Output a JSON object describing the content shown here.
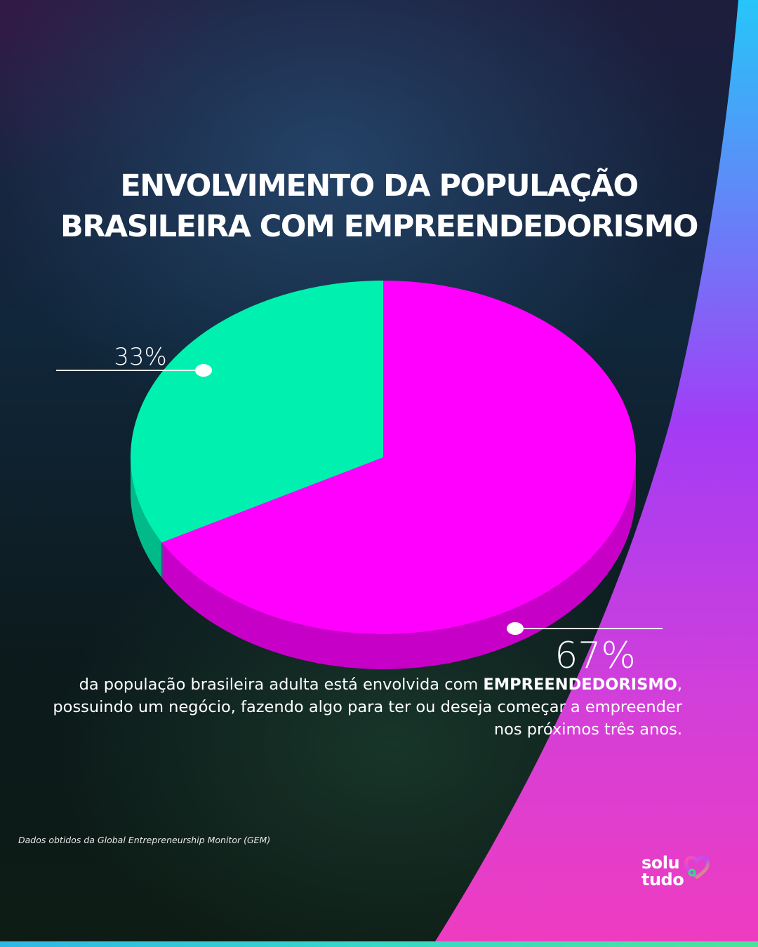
{
  "title": {
    "line1": "ENVOLVIMENTO DA POPULAÇÃO",
    "line2": "BRASILEIRA COM EMPREENDEDORISMO"
  },
  "chart_data": {
    "type": "pie",
    "categories": [
      "",
      ""
    ],
    "values": [
      33,
      67
    ],
    "labels": [
      "33%",
      "67%"
    ],
    "colors": [
      "#00f0b0",
      "#ff00ff"
    ],
    "style": "3d"
  },
  "description": {
    "part1": "da população brasileira adulta está envolvida com ",
    "emphasis": "EMPREENDEDORISMO",
    "part2": ", possuindo um negócio, fazendo algo para ter ou deseja começar a empreender nos próximos três anos."
  },
  "source": "Dados obtidos da Global Entrepreneurship Monitor (GEM)",
  "logo": {
    "line1": "solu",
    "line2": "tudo"
  },
  "colors": {
    "accent_magenta": "#ff00ff",
    "accent_green": "#00f0b0",
    "ribbon_top": "#26c6f9",
    "ribbon_mid": "#a33cf5",
    "ribbon_bottom": "#e93cc6"
  }
}
